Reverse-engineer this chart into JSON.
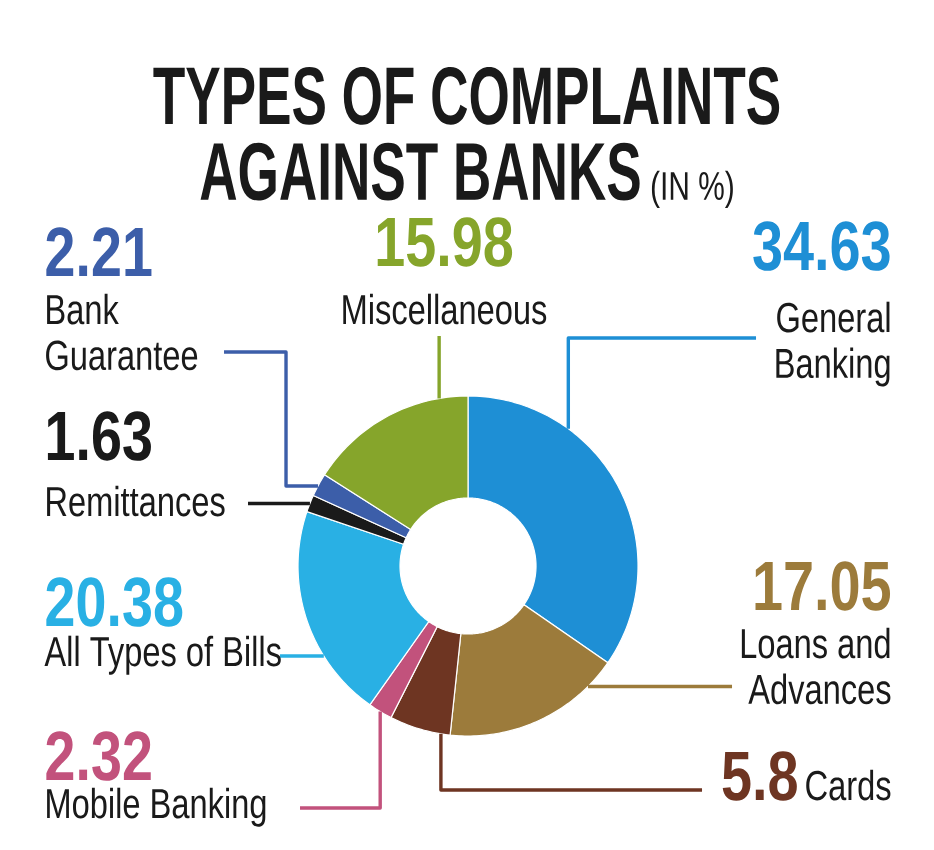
{
  "chart_data": {
    "type": "donut",
    "title": "**TYPES OF COMPLAINTS AGAINST BANKS** (IN %)",
    "categories": [
      "General Banking",
      "Loans and Advances",
      "Cards",
      "Mobile Banking",
      "All Types of Bills",
      "Remittances",
      "Bank Guarantee",
      "Miscellaneous"
    ],
    "values": [
      34.63,
      17.05,
      5.8,
      2.32,
      20.38,
      1.63,
      2.21,
      15.98
    ],
    "colors": [
      "#1e8fd5",
      "#9c7b3b",
      "#6e3522",
      "#c2527c",
      "#29b0e4",
      "#1a1a1a",
      "#3c5ea9",
      "#86a52b"
    ],
    "data_labels": true
  }
}
